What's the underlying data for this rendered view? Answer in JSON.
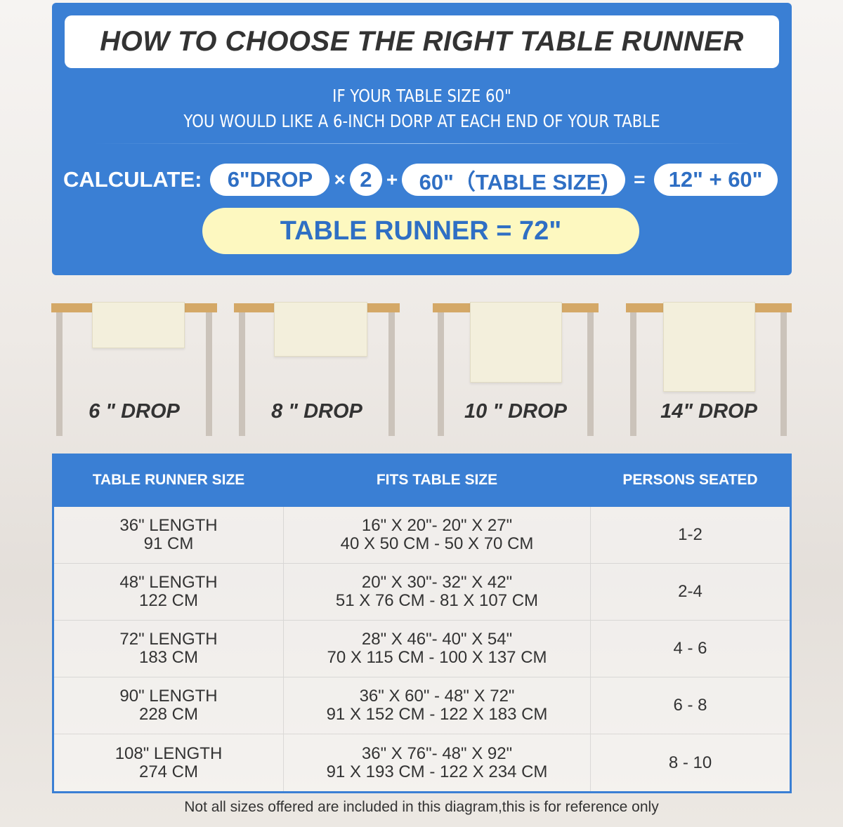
{
  "title": "HOW TO CHOOSE THE RIGHT TABLE RUNNER",
  "intro": [
    "IF YOUR TABLE SIZE 60\"",
    "YOU WOULD LIKE A 6-INCH DORP AT EACH END OF YOUR TABLE"
  ],
  "calc": {
    "label": "CALCULATE:",
    "drop": "6\"DROP",
    "times": "×",
    "multiplier": "2",
    "plus": "+",
    "table": "60\"（TABLE SIZE)",
    "equals": "=",
    "sum": "12\" + 60\"",
    "result": "TABLE RUNNER = 72\""
  },
  "drops": [
    "6 \" DROP",
    "8 \" DROP",
    "10 \" DROP",
    "14\" DROP"
  ],
  "table": {
    "headers": [
      "TABLE RUNNER SIZE",
      "FITS TABLE SIZE",
      "PERSONS SEATED"
    ],
    "rows": [
      {
        "size": [
          "36\" LENGTH",
          "91 CM"
        ],
        "fits": [
          "16\" X 20\"- 20\" X 27\"",
          "40 X 50 CM - 50 X 70 CM"
        ],
        "persons": "1-2"
      },
      {
        "size": [
          "48\" LENGTH",
          "122 CM"
        ],
        "fits": [
          "20\" X 30\"- 32\" X 42\"",
          "51 X 76 CM - 81 X 107 CM"
        ],
        "persons": "2-4"
      },
      {
        "size": [
          "72\" LENGTH",
          "183 CM"
        ],
        "fits": [
          "28\" X 46\"- 40\" X 54\"",
          "70 X 115 CM - 100 X 137 CM"
        ],
        "persons": "4 - 6"
      },
      {
        "size": [
          "90\" LENGTH",
          "228 CM"
        ],
        "fits": [
          "36\" X 60\" - 48\" X 72\"",
          "91 X 152 CM - 122 X 183 CM"
        ],
        "persons": "6 - 8"
      },
      {
        "size": [
          "108\" LENGTH",
          "274 CM"
        ],
        "fits": [
          "36\" X 76\"- 48\" X 92\"",
          "91 X 193 CM - 122 X 234 CM"
        ],
        "persons": "8 - 10"
      }
    ]
  },
  "note": "Not all sizes offered are included in this diagram,this is for reference only",
  "colors": {
    "blue": "#3a7fd4",
    "yellow": "#fdf8c0",
    "text_blue": "#2f6fc4",
    "wood": "#d4a867"
  }
}
